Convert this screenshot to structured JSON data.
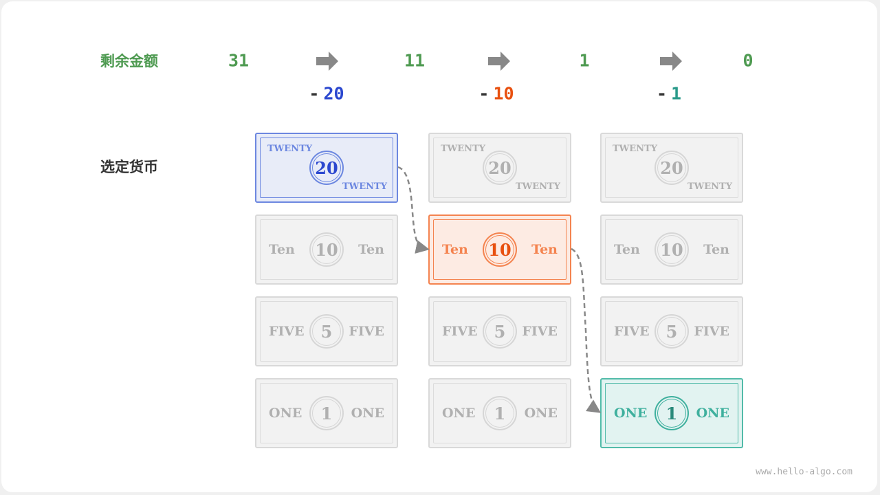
{
  "labels": {
    "remaining": "剩余金额",
    "selected": "选定货币"
  },
  "remaining_values": [
    "31",
    "11",
    "1",
    "0"
  ],
  "subtractions": [
    {
      "minus": "-",
      "value": "20",
      "color": "#2b47cf"
    },
    {
      "minus": "-",
      "value": "10",
      "color": "#e8500f"
    },
    {
      "minus": "-",
      "value": "1",
      "color": "#2a9a8a"
    }
  ],
  "notes": [
    {
      "value": "20",
      "word": "TWENTY",
      "layout": "corner"
    },
    {
      "value": "10",
      "word": "Ten",
      "layout": "sides"
    },
    {
      "value": "5",
      "word": "FIVE",
      "layout": "sides"
    },
    {
      "value": "1",
      "word": "ONE",
      "layout": "sides"
    }
  ],
  "selected": [
    {
      "column": 0,
      "note": 0,
      "style": "blue"
    },
    {
      "column": 1,
      "note": 1,
      "style": "orange"
    },
    {
      "column": 2,
      "note": 3,
      "style": "teal"
    }
  ],
  "colors": {
    "green": "#4e9a51",
    "arrow": "#888888",
    "blue": "#6c87e0",
    "orange": "#f4834f",
    "teal": "#52bba9",
    "inactive": "#f2f2f2"
  },
  "watermark": "www.hello-algo.com"
}
